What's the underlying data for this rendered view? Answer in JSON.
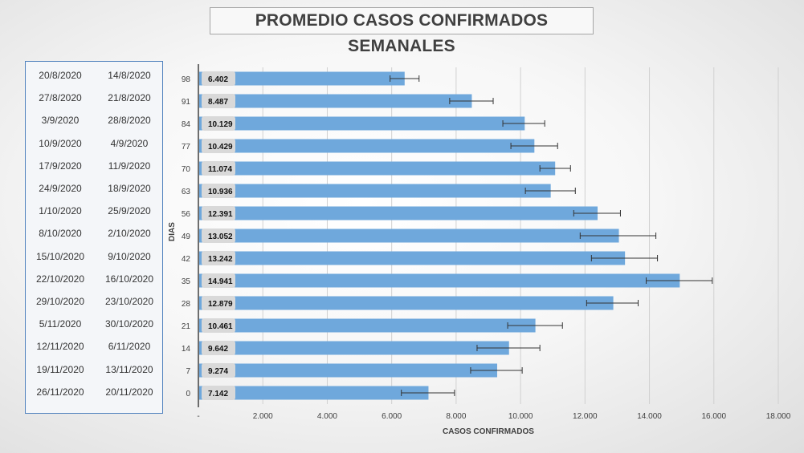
{
  "title": "PROMEDIO CASOS CONFIRMADOS SEMANALES",
  "date_ranges": [
    {
      "end": "20/8/2020",
      "start": "14/8/2020"
    },
    {
      "end": "27/8/2020",
      "start": "21/8/2020"
    },
    {
      "end": "3/9/2020",
      "start": "28/8/2020"
    },
    {
      "end": "10/9/2020",
      "start": "4/9/2020"
    },
    {
      "end": "17/9/2020",
      "start": "11/9/2020"
    },
    {
      "end": "24/9/2020",
      "start": "18/9/2020"
    },
    {
      "end": "1/10/2020",
      "start": "25/9/2020"
    },
    {
      "end": "8/10/2020",
      "start": "2/10/2020"
    },
    {
      "end": "15/10/2020",
      "start": "9/10/2020"
    },
    {
      "end": "22/10/2020",
      "start": "16/10/2020"
    },
    {
      "end": "29/10/2020",
      "start": "23/10/2020"
    },
    {
      "end": "5/11/2020",
      "start": "30/10/2020"
    },
    {
      "end": "12/11/2020",
      "start": "6/11/2020"
    },
    {
      "end": "19/11/2020",
      "start": "13/11/2020"
    },
    {
      "end": "26/11/2020",
      "start": "20/11/2020"
    }
  ],
  "chart_data": {
    "type": "bar",
    "orientation": "horizontal",
    "title": "PROMEDIO CASOS CONFIRMADOS SEMANALES",
    "xlabel": "CASOS CONFIRMADOS",
    "ylabel": "DIAS",
    "categories": [
      "98",
      "91",
      "84",
      "77",
      "70",
      "63",
      "56",
      "49",
      "42",
      "35",
      "28",
      "21",
      "14",
      "7",
      "0"
    ],
    "values": [
      6402,
      8487,
      10129,
      10429,
      11074,
      10936,
      12391,
      13052,
      13242,
      14941,
      12879,
      10461,
      9642,
      9274,
      7142
    ],
    "value_labels": [
      "6.402",
      "8.487",
      "10.129",
      "10.429",
      "11.074",
      "10.936",
      "12.391",
      "13.052",
      "13.242",
      "14.941",
      "12.879",
      "10.461",
      "9.642",
      "9.274",
      "7.142"
    ],
    "error_low": [
      5950,
      7800,
      9450,
      9700,
      10600,
      10150,
      11650,
      11850,
      12200,
      13900,
      12050,
      9600,
      8650,
      8450,
      6300
    ],
    "error_high": [
      6850,
      9150,
      10750,
      11150,
      11550,
      11700,
      13100,
      14200,
      14250,
      15950,
      13650,
      11300,
      10600,
      10050,
      7950
    ],
    "xlim": [
      0,
      18000
    ],
    "xticks": [
      0,
      2000,
      4000,
      6000,
      8000,
      10000,
      12000,
      14000,
      16000,
      18000
    ],
    "xtick_labels": [
      "-",
      "2.000",
      "4.000",
      "6.000",
      "8.000",
      "10.000",
      "12.000",
      "14.000",
      "16.000",
      "18.000"
    ],
    "grid": "vertical",
    "bar_color": "#6fa8dc"
  }
}
